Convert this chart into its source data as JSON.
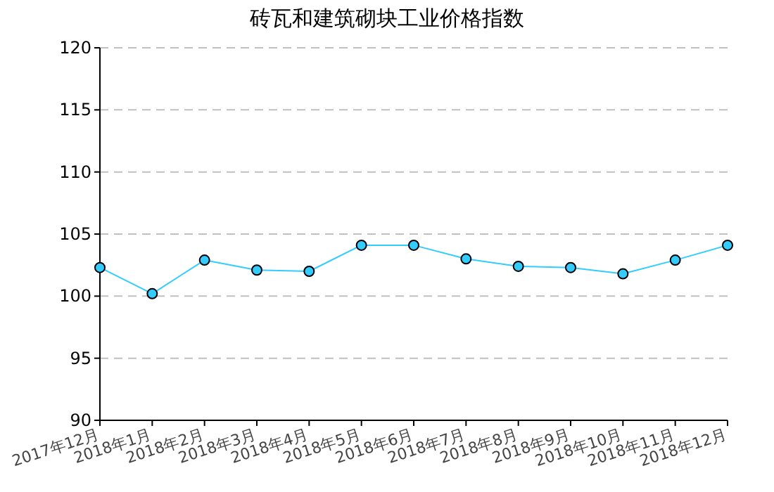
{
  "chart_data": {
    "type": "line",
    "title": "砖瓦和建筑砌块工业价格指数",
    "categories": [
      "2017年12月",
      "2018年1月",
      "2018年2月",
      "2018年3月",
      "2018年4月",
      "2018年5月",
      "2018年6月",
      "2018年7月",
      "2018年8月",
      "2018年9月",
      "2018年10月",
      "2018年11月",
      "2018年12月"
    ],
    "series": [
      {
        "color": "#33ccff",
        "values": [
          102.3,
          100.2,
          102.9,
          102.1,
          102.0,
          104.1,
          104.1,
          103.0,
          102.4,
          102.3,
          101.8,
          102.9,
          104.1
        ]
      }
    ],
    "ylim": [
      90,
      120
    ],
    "yticks": [
      90,
      95,
      100,
      105,
      110,
      115,
      120
    ],
    "grid": "y",
    "marker": "circle",
    "line_style": "solid"
  }
}
